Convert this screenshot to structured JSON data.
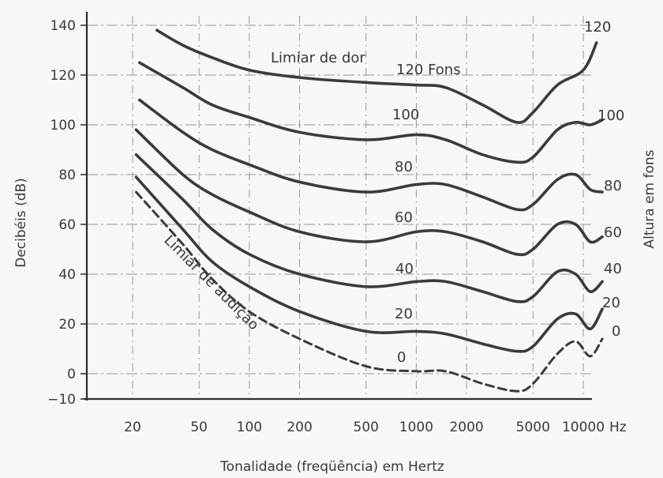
{
  "chart_data": {
    "type": "line",
    "title": "",
    "xlabel": "Tonalidade (freqüência) em Hertz",
    "ylabel": "Decibéis (dB)",
    "y2label": "Altura em fons",
    "x_unit": "Hz",
    "x_scale": "log",
    "xlim": [
      15,
      13000
    ],
    "ylim": [
      -10,
      145
    ],
    "grid": true,
    "x_ticks": [
      20,
      50,
      100,
      200,
      500,
      1000,
      2000,
      5000,
      10000
    ],
    "x_tick_labels": [
      "20",
      "50",
      "100",
      "200",
      "500",
      "1000",
      "2000",
      "5000",
      "10000"
    ],
    "y_ticks": [
      -10,
      0,
      20,
      40,
      60,
      80,
      100,
      120,
      140
    ],
    "y_tick_labels": [
      "−10",
      "0",
      "20",
      "40",
      "60",
      "80",
      "100",
      "120",
      "140"
    ],
    "right_labels": [
      "120",
      "100",
      "80",
      "60",
      "40",
      "20",
      "0"
    ],
    "annotations": {
      "pain": "Limiar de dor",
      "hearing": "Limiar de audição"
    },
    "series": [
      {
        "name": "120 Fons",
        "style": "solid",
        "points": [
          [
            28,
            138
          ],
          [
            40,
            132
          ],
          [
            60,
            127
          ],
          [
            100,
            122
          ],
          [
            200,
            119
          ],
          [
            500,
            117
          ],
          [
            1000,
            116
          ],
          [
            1500,
            115
          ],
          [
            2500,
            108
          ],
          [
            4000,
            101
          ],
          [
            5000,
            105
          ],
          [
            7000,
            116
          ],
          [
            10000,
            122
          ],
          [
            12000,
            133
          ]
        ]
      },
      {
        "name": "100",
        "style": "solid",
        "points": [
          [
            22,
            125
          ],
          [
            40,
            115
          ],
          [
            60,
            108
          ],
          [
            100,
            103
          ],
          [
            200,
            97
          ],
          [
            500,
            94
          ],
          [
            1000,
            96
          ],
          [
            1500,
            94
          ],
          [
            2500,
            88
          ],
          [
            4000,
            85
          ],
          [
            5000,
            87
          ],
          [
            7000,
            98
          ],
          [
            9000,
            101
          ],
          [
            11000,
            100
          ],
          [
            13000,
            102
          ]
        ]
      },
      {
        "name": "80",
        "style": "solid",
        "points": [
          [
            22,
            110
          ],
          [
            40,
            97
          ],
          [
            60,
            90
          ],
          [
            100,
            84
          ],
          [
            200,
            77
          ],
          [
            500,
            73
          ],
          [
            1000,
            76
          ],
          [
            1500,
            76
          ],
          [
            2500,
            71
          ],
          [
            4000,
            66
          ],
          [
            5000,
            68
          ],
          [
            7000,
            78
          ],
          [
            9000,
            80
          ],
          [
            11000,
            74
          ],
          [
            13000,
            73
          ]
        ]
      },
      {
        "name": "60",
        "style": "solid",
        "points": [
          [
            21,
            98
          ],
          [
            40,
            80
          ],
          [
            60,
            72
          ],
          [
            100,
            65
          ],
          [
            200,
            57
          ],
          [
            500,
            53
          ],
          [
            1000,
            57
          ],
          [
            1500,
            57
          ],
          [
            2500,
            53
          ],
          [
            4000,
            48
          ],
          [
            5000,
            50
          ],
          [
            7000,
            60
          ],
          [
            9000,
            60
          ],
          [
            11000,
            53
          ],
          [
            13000,
            55
          ]
        ]
      },
      {
        "name": "40",
        "style": "solid",
        "points": [
          [
            21,
            88
          ],
          [
            40,
            70
          ],
          [
            60,
            58
          ],
          [
            100,
            48
          ],
          [
            200,
            40
          ],
          [
            500,
            35
          ],
          [
            1000,
            37
          ],
          [
            1500,
            37
          ],
          [
            2500,
            33
          ],
          [
            4000,
            29
          ],
          [
            5000,
            31
          ],
          [
            7000,
            41
          ],
          [
            9000,
            40
          ],
          [
            11000,
            33
          ],
          [
            13000,
            37
          ]
        ]
      },
      {
        "name": "20",
        "style": "solid",
        "points": [
          [
            21,
            79
          ],
          [
            40,
            58
          ],
          [
            60,
            45
          ],
          [
            100,
            35
          ],
          [
            200,
            25
          ],
          [
            500,
            17
          ],
          [
            1000,
            17
          ],
          [
            1500,
            16
          ],
          [
            2500,
            12
          ],
          [
            4000,
            9
          ],
          [
            5000,
            11
          ],
          [
            7000,
            22
          ],
          [
            9000,
            24
          ],
          [
            11000,
            18
          ],
          [
            13000,
            26
          ]
        ]
      },
      {
        "name": "0",
        "style": "dashed",
        "points": [
          [
            21,
            73
          ],
          [
            40,
            52
          ],
          [
            60,
            38
          ],
          [
            100,
            25
          ],
          [
            200,
            14
          ],
          [
            500,
            3
          ],
          [
            1000,
            1
          ],
          [
            1500,
            1
          ],
          [
            2500,
            -4
          ],
          [
            4000,
            -7
          ],
          [
            5000,
            -4
          ],
          [
            7000,
            8
          ],
          [
            9000,
            13
          ],
          [
            11000,
            7
          ],
          [
            13000,
            14
          ]
        ]
      }
    ]
  }
}
